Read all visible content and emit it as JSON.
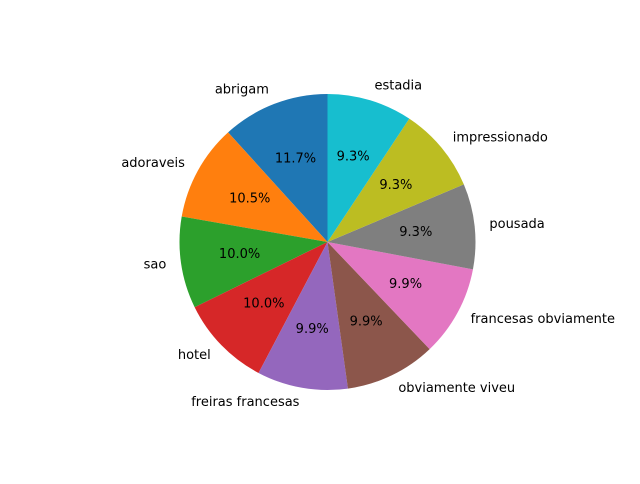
{
  "chart_data": {
    "type": "pie",
    "title": "",
    "start_angle_deg": 90,
    "direction": "counterclockwise",
    "slices": [
      {
        "label": "abrigam",
        "pct_label": "11.7%",
        "value": 11.7,
        "color": "#1f77b4"
      },
      {
        "label": "adoraveis",
        "pct_label": "10.5%",
        "value": 10.5,
        "color": "#ff7f0e"
      },
      {
        "label": "sao",
        "pct_label": "10.0%",
        "value": 10.0,
        "color": "#2ca02c"
      },
      {
        "label": "hotel",
        "pct_label": "10.0%",
        "value": 10.0,
        "color": "#d62728"
      },
      {
        "label": "freiras francesas",
        "pct_label": "9.9%",
        "value": 9.9,
        "color": "#9467bd"
      },
      {
        "label": "obviamente viveu",
        "pct_label": "9.9%",
        "value": 9.9,
        "color": "#8c564b"
      },
      {
        "label": "francesas obviamente",
        "pct_label": "9.9%",
        "value": 9.9,
        "color": "#e377c2"
      },
      {
        "label": "pousada",
        "pct_label": "9.3%",
        "value": 9.3,
        "color": "#7f7f7f"
      },
      {
        "label": "impressionado",
        "pct_label": "9.3%",
        "value": 9.3,
        "color": "#bcbd22"
      },
      {
        "label": "estadia",
        "pct_label": "9.3%",
        "value": 9.3,
        "color": "#17becf"
      }
    ]
  }
}
